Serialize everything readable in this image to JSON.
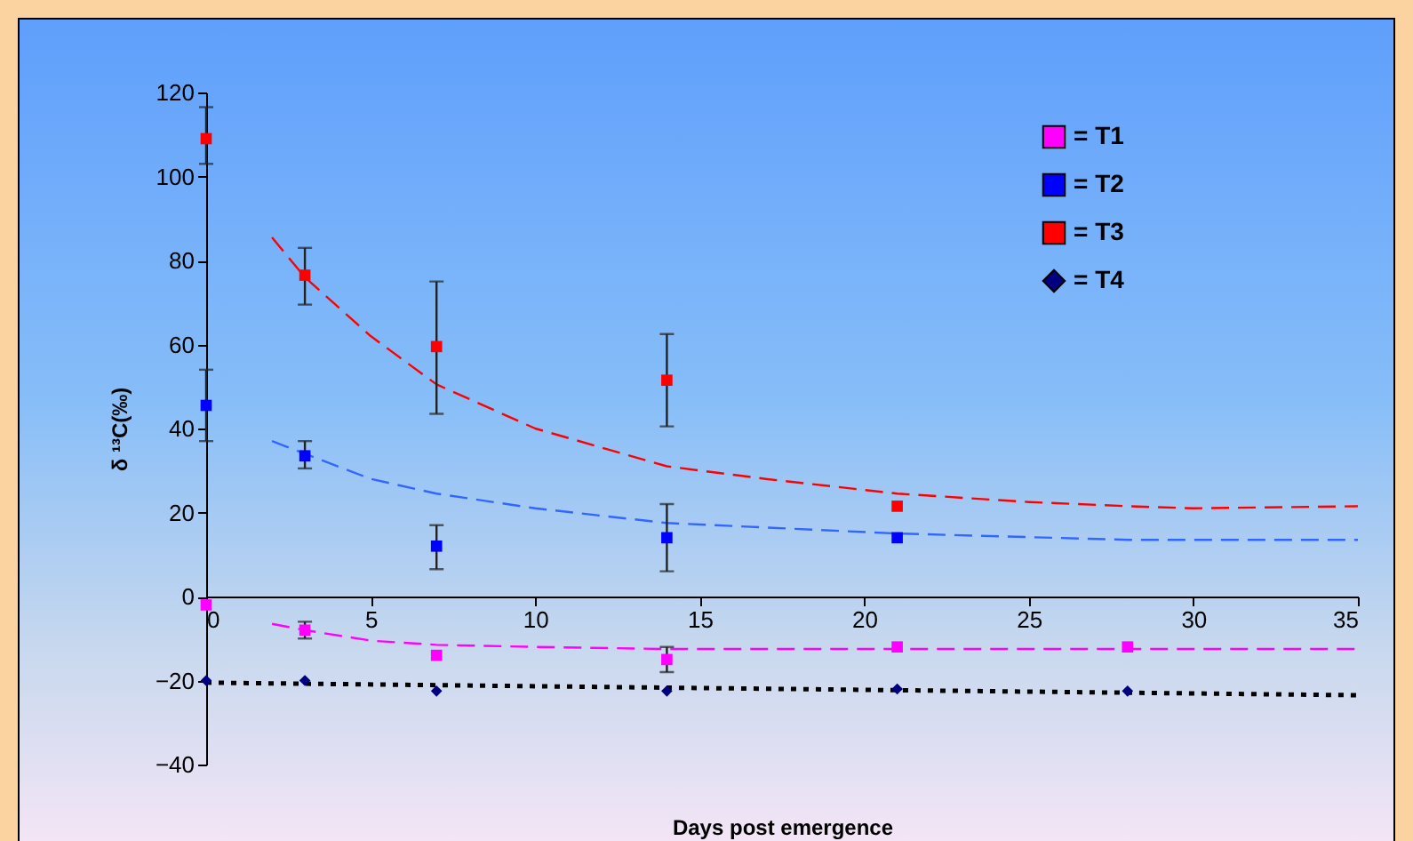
{
  "chart_data": {
    "type": "scatter",
    "xlabel": "Days post emergence",
    "ylabel": "δ ¹³C(‰)",
    "xlim": [
      0,
      35
    ],
    "xticks": [
      0,
      5,
      10,
      15,
      20,
      25,
      30,
      35
    ],
    "ylim": [
      -40,
      120
    ],
    "yticks": [
      -40,
      -20,
      0,
      20,
      40,
      60,
      80,
      100,
      120
    ],
    "grid": false,
    "legend": "top right",
    "series": [
      {
        "name": "= T1",
        "type": "scatter",
        "marker": "square",
        "color": "#ff00ff",
        "x": [
          0,
          3,
          7,
          14,
          21,
          28
        ],
        "values": [
          -2,
          -8,
          -14,
          -15,
          -12,
          -12
        ],
        "errors": [
          null,
          2,
          null,
          3,
          null,
          null
        ]
      },
      {
        "name": "= T2",
        "type": "scatter",
        "marker": "square",
        "color": "#0000ff",
        "x": [
          0,
          3,
          7,
          14,
          21
        ],
        "values": [
          45.5,
          33.5,
          12,
          14,
          14
        ],
        "errors": [
          [
            37,
            54
          ],
          [
            30.5,
            37
          ],
          [
            6.5,
            17
          ],
          [
            6,
            22
          ],
          null
        ]
      },
      {
        "name": "= T3",
        "type": "scatter",
        "marker": "square",
        "color": "#ff0000",
        "x": [
          0,
          3,
          7,
          14,
          21
        ],
        "values": [
          109,
          76.5,
          59.5,
          51.5,
          21.5
        ],
        "errors": [
          [
            103,
            116.5
          ],
          [
            69.5,
            83
          ],
          [
            43.5,
            75
          ],
          [
            40.5,
            62.5
          ],
          null
        ]
      },
      {
        "name": "= T4",
        "type": "scatter",
        "marker": "diamond",
        "color": "#000080",
        "x": [
          0,
          3,
          7,
          14,
          21,
          28
        ],
        "values": [
          -20,
          -20,
          -22.5,
          -22.5,
          -22,
          -22.5
        ]
      },
      {
        "type": "line",
        "line_style": "dashed",
        "color": "#ff00ff",
        "x": [
          2,
          3,
          5,
          7,
          10,
          14,
          21,
          28,
          35
        ],
        "values": [
          -6.5,
          -8,
          -10.5,
          -11.5,
          -12,
          -12.5,
          -12.5,
          -12.5,
          -12.5
        ]
      },
      {
        "type": "line",
        "line_style": "dashed",
        "color": "#3366ff",
        "x": [
          2,
          3,
          5,
          7,
          10,
          14,
          21,
          28,
          35
        ],
        "values": [
          37,
          34,
          28,
          24.5,
          21,
          17.5,
          15,
          13.5,
          13.5
        ]
      },
      {
        "type": "line",
        "line_style": "dashed",
        "color": "#ff0000",
        "x": [
          2,
          3,
          5,
          7,
          10,
          14,
          17,
          21,
          25,
          28,
          30,
          35
        ],
        "values": [
          85.5,
          76,
          62,
          50.5,
          40,
          31,
          28,
          24.5,
          22.5,
          21.5,
          21,
          21.5
        ]
      },
      {
        "type": "line",
        "line_style": "dotted",
        "color": "#000000",
        "x": [
          0,
          35
        ],
        "values": [
          -20.5,
          -23.5
        ]
      }
    ]
  }
}
